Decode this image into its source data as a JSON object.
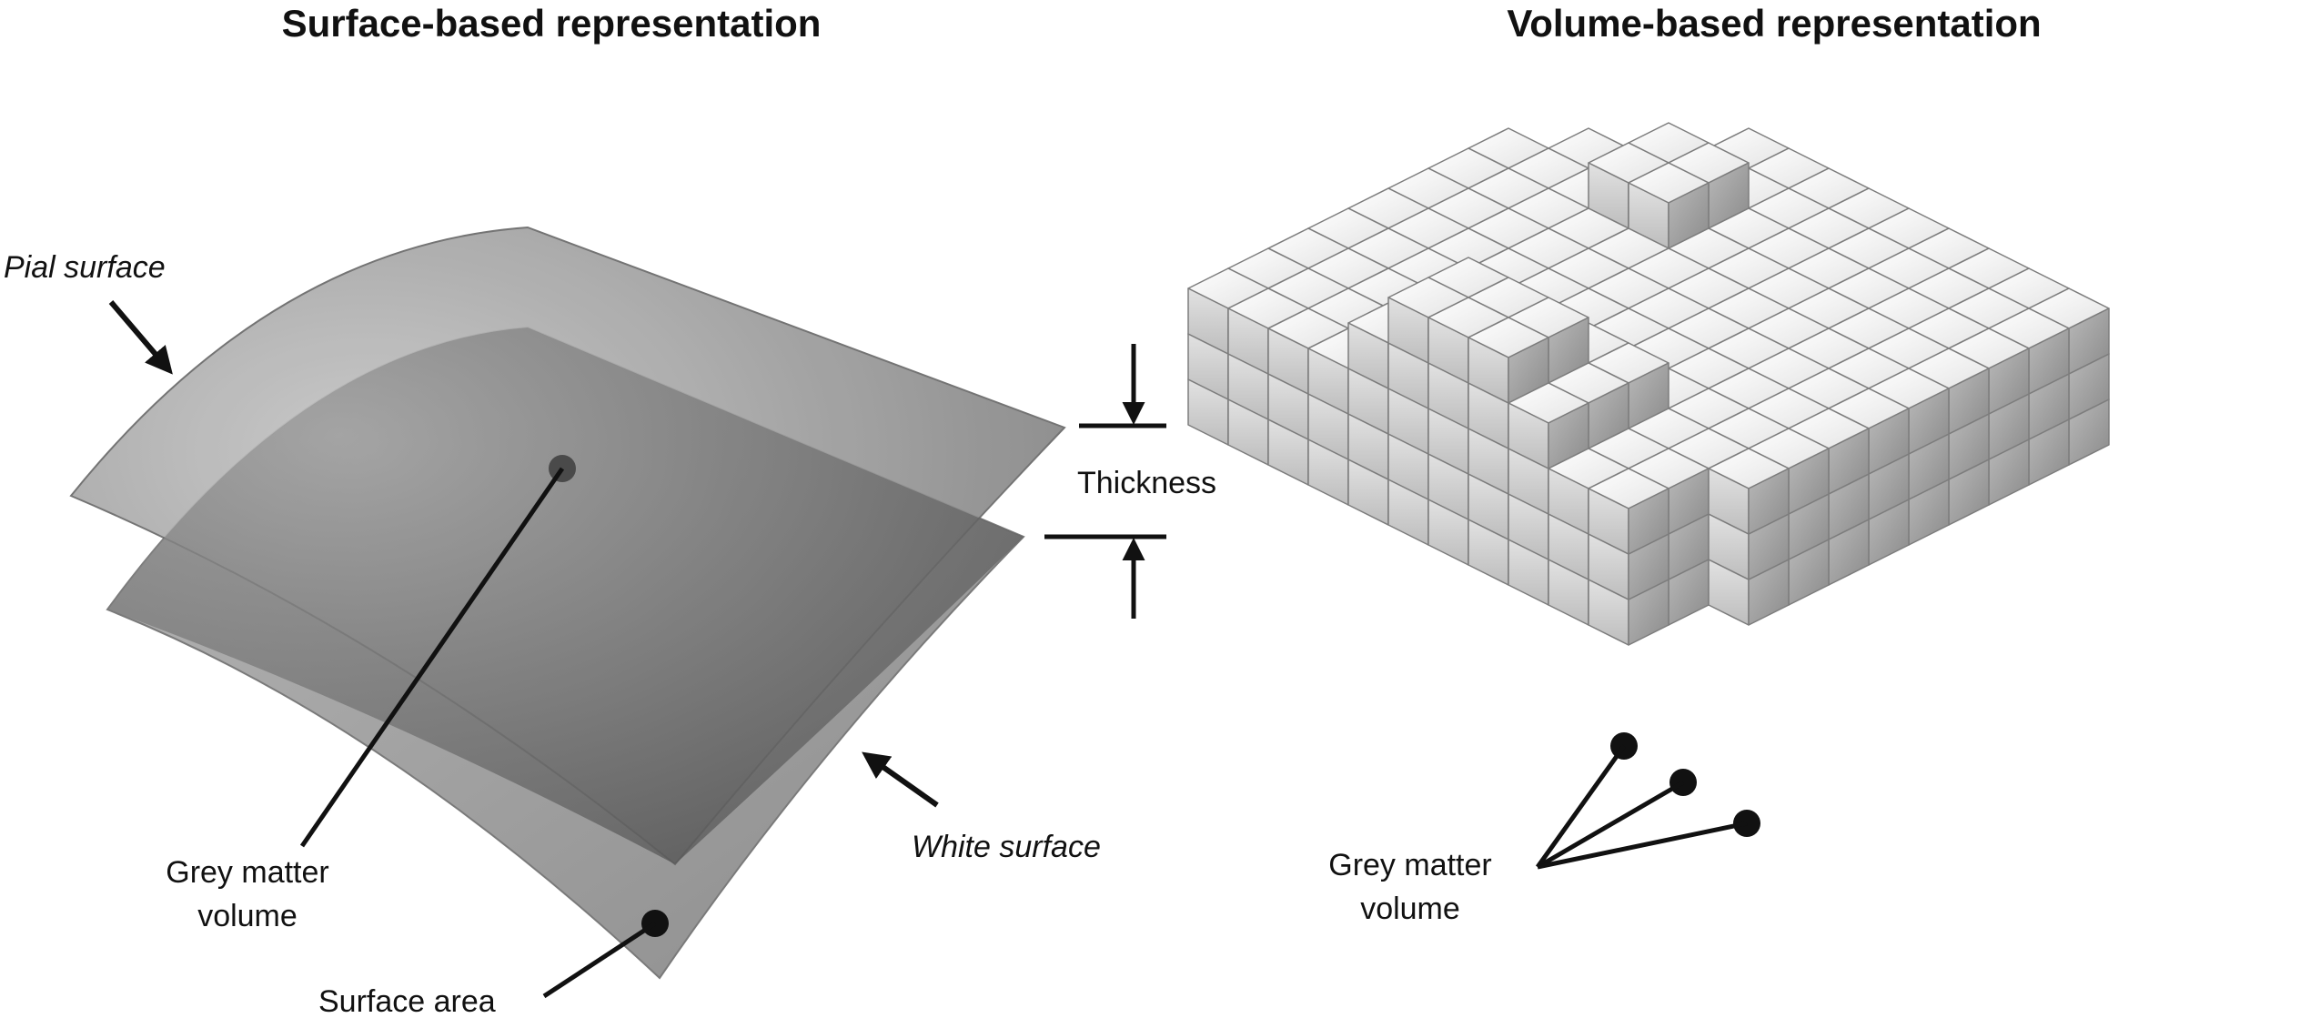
{
  "left_panel": {
    "title": "Surface-based representation",
    "labels": {
      "pial_surface": "Pial surface",
      "white_surface": "White surface",
      "thickness": "Thickness",
      "grey_matter_line1": "Grey matter",
      "grey_matter_line2": "volume",
      "surface_area": "Surface area"
    }
  },
  "right_panel": {
    "title": "Volume-based representation",
    "labels": {
      "grey_matter_line1": "Grey matter",
      "grey_matter_line2": "volume"
    }
  },
  "colors": {
    "ink": "#111111",
    "pial_light": "#bdbdbd",
    "pial_dark": "#6e6e6e",
    "white_light": "#b0b0b0",
    "white_dark": "#8a8a8a",
    "cube_top": "#f2f2f2",
    "cube_left": "#d4d4d4",
    "cube_right": "#a9a9a9"
  }
}
